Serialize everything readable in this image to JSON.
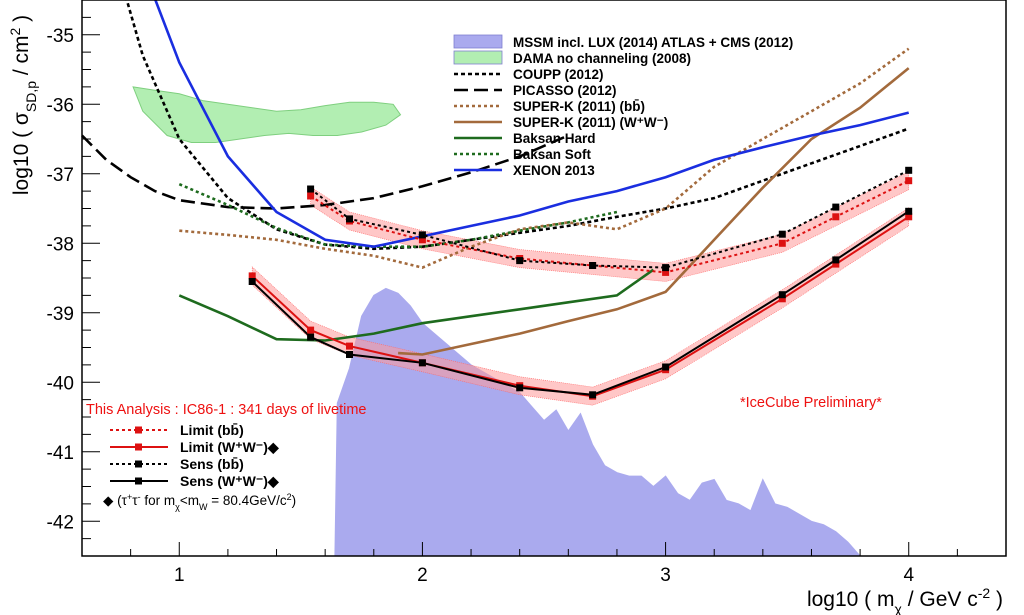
{
  "chart_data": {
    "type": "line",
    "xlabel": "log10 ( m_χ / GeV c⁻² )",
    "ylabel": "log10 ( σ_SD,p / cm² )",
    "xlim": [
      0.6,
      4.4
    ],
    "ylim": [
      -42.5,
      -34.5
    ],
    "x_ticks": [
      "1",
      "2",
      "3",
      "4"
    ],
    "y_ticks": [
      "-35",
      "-36",
      "-37",
      "-38",
      "-39",
      "-40",
      "-41",
      "-42"
    ],
    "grid": false,
    "legend_position": "top-right",
    "analysis_title": "This Analysis : IC86-1 : 341 days of livetime",
    "annotation": "*IceCube Preliminary*",
    "footnote": "◆ (τ⁺τ⁻ for m_χ<m_W = 80.4GeV/c²)",
    "series": [
      {
        "name": "MSSM incl. LUX (2014) ATLAS + CMS (2012)",
        "kind": "fill",
        "color": "#aaaaee",
        "x": [
          1.64,
          1.65,
          1.7,
          1.75,
          1.8,
          1.85,
          1.9,
          1.95,
          2.0,
          2.1,
          2.2,
          2.3,
          2.35,
          2.4,
          2.45,
          2.5,
          2.55,
          2.6,
          2.65,
          2.7,
          2.75,
          2.8,
          2.85,
          2.9,
          2.95,
          3.0,
          3.05,
          3.1,
          3.15,
          3.2,
          3.25,
          3.3,
          3.35,
          3.4,
          3.45,
          3.5,
          3.55,
          3.6,
          3.65,
          3.7,
          3.75,
          3.8
        ],
        "y": [
          -42.5,
          -40.3,
          -39.8,
          -39.05,
          -38.75,
          -38.65,
          -38.72,
          -38.9,
          -39.15,
          -39.45,
          -39.75,
          -39.95,
          -40.05,
          -40.15,
          -40.35,
          -40.55,
          -40.4,
          -40.7,
          -40.45,
          -40.9,
          -41.2,
          -41.3,
          -41.35,
          -41.35,
          -41.5,
          -41.35,
          -41.6,
          -41.7,
          -41.45,
          -41.4,
          -41.7,
          -41.75,
          -41.85,
          -41.4,
          -41.75,
          -41.8,
          -41.9,
          -42.0,
          -42.05,
          -42.15,
          -42.3,
          -42.5
        ]
      },
      {
        "name": "DAMA no channeling (2008)",
        "kind": "fill",
        "color": "#b2eeb2",
        "x": [
          0.81,
          0.9,
          1.0,
          1.1,
          1.2,
          1.3,
          1.4,
          1.5,
          1.6,
          1.7,
          1.8,
          1.88,
          1.91,
          1.85,
          1.75,
          1.65,
          1.55,
          1.45,
          1.35,
          1.25,
          1.15,
          1.05,
          0.95,
          0.85,
          0.81
        ],
        "y": [
          -35.75,
          -35.8,
          -35.85,
          -35.95,
          -36.0,
          -36.05,
          -36.1,
          -36.08,
          -36.02,
          -35.97,
          -35.97,
          -36.0,
          -36.15,
          -36.3,
          -36.4,
          -36.45,
          -36.45,
          -36.42,
          -36.45,
          -36.5,
          -36.55,
          -36.55,
          -36.45,
          -36.1,
          -35.75
        ]
      },
      {
        "name": "COUPP (2012)",
        "color": "#000000",
        "dash": "4,3",
        "x": [
          0.78,
          0.85,
          1.0,
          1.2,
          1.4,
          1.6,
          1.8,
          2.0,
          2.2,
          2.4,
          2.6,
          2.8,
          3.0,
          3.2,
          3.4,
          3.6,
          3.8,
          4.0
        ],
        "y": [
          -34.45,
          -35.3,
          -36.5,
          -37.35,
          -37.8,
          -38.02,
          -38.08,
          -38.05,
          -37.95,
          -37.85,
          -37.75,
          -37.62,
          -37.5,
          -37.35,
          -37.1,
          -36.85,
          -36.6,
          -36.35
        ]
      },
      {
        "name": "PICASSO (2012)",
        "color": "#000000",
        "dash": "14,6",
        "x": [
          0.6,
          0.7,
          0.8,
          0.9,
          1.0,
          1.2,
          1.4,
          1.6,
          1.8,
          2.0,
          2.2,
          2.4,
          2.6
        ],
        "y": [
          -36.45,
          -36.8,
          -37.05,
          -37.25,
          -37.38,
          -37.48,
          -37.5,
          -37.45,
          -37.35,
          -37.18,
          -36.98,
          -36.75,
          -36.45
        ]
      },
      {
        "name": "SUPER-K (2011) (bb̄)",
        "color": "#a36a3c",
        "dash": "3,3",
        "x": [
          1.0,
          1.2,
          1.4,
          1.6,
          1.8,
          2.0,
          2.2,
          2.4,
          2.6,
          2.8,
          3.0,
          3.2,
          3.4,
          3.6,
          3.8,
          4.0
        ],
        "y": [
          -37.82,
          -37.88,
          -37.95,
          -38.08,
          -38.18,
          -38.35,
          -38.05,
          -37.8,
          -37.7,
          -37.8,
          -37.5,
          -36.9,
          -36.5,
          -36.1,
          -35.7,
          -35.2
        ]
      },
      {
        "name": "SUPER-K (2011) (W⁺W⁻)",
        "color": "#a36a3c",
        "x": [
          1.9,
          2.0,
          2.2,
          2.4,
          2.6,
          2.8,
          3.0,
          3.2,
          3.4,
          3.6,
          3.8,
          4.0
        ],
        "y": [
          -39.58,
          -39.6,
          -39.45,
          -39.3,
          -39.12,
          -38.95,
          -38.7,
          -37.95,
          -37.2,
          -36.5,
          -36.05,
          -35.48
        ]
      },
      {
        "name": "Baksan Hard",
        "color": "#1e6b1e",
        "x": [
          1.0,
          1.2,
          1.4,
          1.6,
          1.8,
          2.0,
          2.2,
          2.4,
          2.6,
          2.8,
          2.95
        ],
        "y": [
          -38.75,
          -39.05,
          -39.38,
          -39.4,
          -39.3,
          -39.15,
          -39.05,
          -38.95,
          -38.85,
          -38.75,
          -38.38
        ]
      },
      {
        "name": "Baksan Soft",
        "color": "#1e6b1e",
        "dash": "3,3",
        "x": [
          1.0,
          1.2,
          1.4,
          1.6,
          1.8,
          2.0,
          2.2,
          2.4,
          2.6,
          2.8
        ],
        "y": [
          -37.15,
          -37.45,
          -37.78,
          -38.02,
          -38.05,
          -38.05,
          -37.95,
          -37.82,
          -37.7,
          -37.55
        ]
      },
      {
        "name": "XENON 2013",
        "color": "#1a2ee0",
        "x": [
          0.88,
          1.0,
          1.2,
          1.4,
          1.6,
          1.8,
          2.0,
          2.2,
          2.4,
          2.6,
          2.8,
          3.0,
          3.2,
          3.4,
          3.6,
          3.8,
          4.0
        ],
        "y": [
          -34.3,
          -35.4,
          -36.75,
          -37.55,
          -37.95,
          -38.05,
          -37.9,
          -37.75,
          -37.6,
          -37.4,
          -37.25,
          -37.05,
          -36.8,
          -36.62,
          -36.45,
          -36.3,
          -36.12
        ]
      },
      {
        "name": "Limit (bb̄)",
        "color": "#dd1111",
        "dash": "3,3",
        "marker": "square",
        "band": 0.13,
        "x": [
          1.54,
          1.7,
          2.0,
          2.4,
          2.7,
          3.0,
          3.48,
          3.7,
          4.0
        ],
        "y": [
          -37.32,
          -37.68,
          -37.95,
          -38.22,
          -38.32,
          -38.42,
          -38.0,
          -37.62,
          -37.1
        ]
      },
      {
        "name": "Limit (W⁺W⁻)◆",
        "color": "#dd1111",
        "marker": "square",
        "band": 0.13,
        "x": [
          1.3,
          1.54,
          1.7,
          2.0,
          2.4,
          2.7,
          3.0,
          3.48,
          3.7,
          4.0
        ],
        "y": [
          -38.47,
          -39.25,
          -39.48,
          -39.72,
          -40.05,
          -40.2,
          -39.82,
          -38.8,
          -38.3,
          -37.62
        ]
      },
      {
        "name": "Sens (bb̄)",
        "color": "#000000",
        "dash": "3,3",
        "marker": "square",
        "x": [
          1.54,
          1.7,
          2.0,
          2.4,
          2.7,
          3.0,
          3.48,
          3.7,
          4.0
        ],
        "y": [
          -37.22,
          -37.65,
          -37.88,
          -38.25,
          -38.32,
          -38.35,
          -37.87,
          -37.48,
          -36.95
        ]
      },
      {
        "name": "Sens (W⁺W⁻)◆",
        "color": "#000000",
        "marker": "square",
        "x": [
          1.3,
          1.54,
          1.7,
          2.0,
          2.4,
          2.7,
          3.0,
          3.48,
          3.7,
          4.0
        ],
        "y": [
          -38.55,
          -39.35,
          -39.6,
          -39.72,
          -40.08,
          -40.18,
          -39.78,
          -38.74,
          -38.24,
          -37.54
        ]
      }
    ]
  }
}
